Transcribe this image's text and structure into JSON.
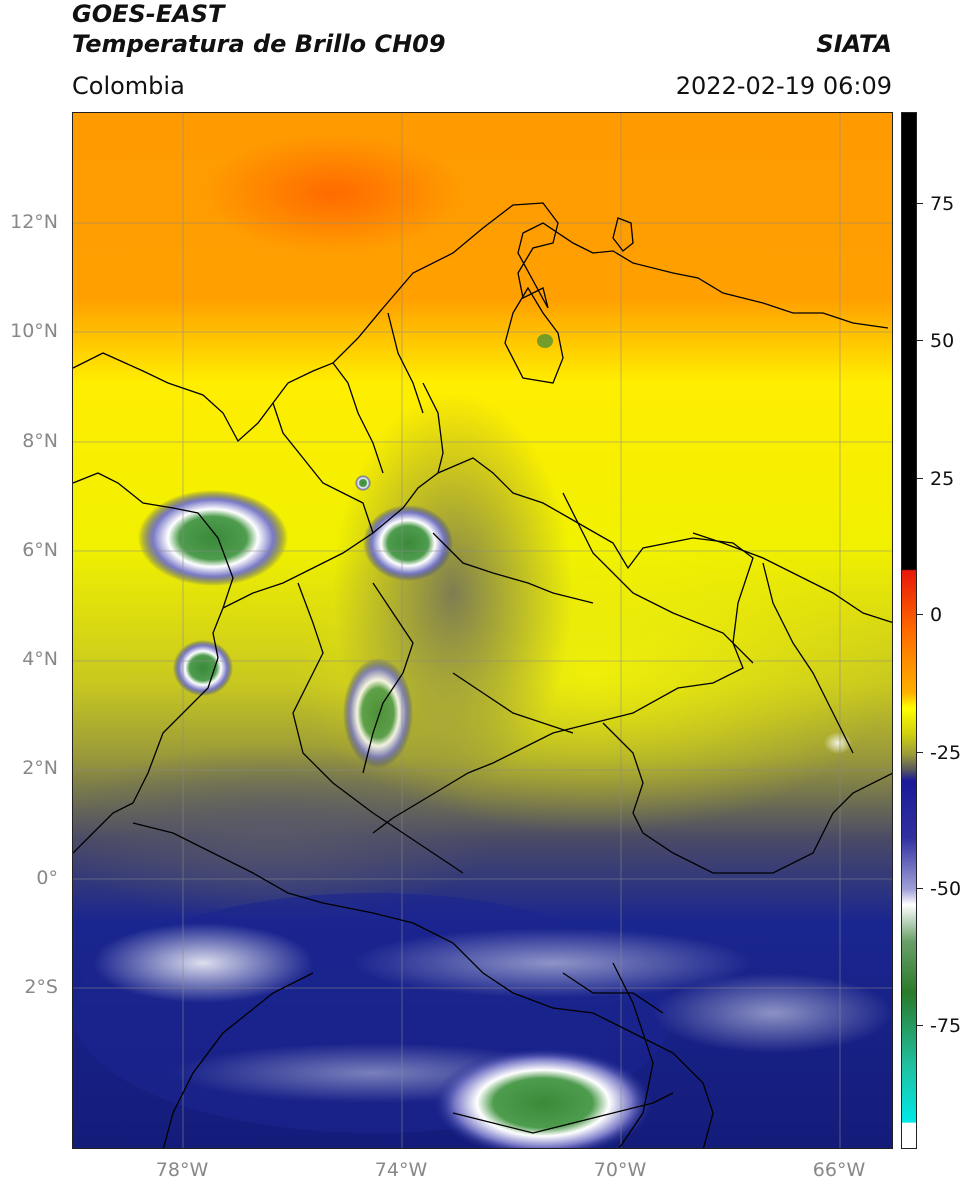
{
  "header": {
    "satellite": "GOES-EAST",
    "product": "Temperatura de Brillo CH09",
    "organization": "SIATA",
    "region": "Colombia",
    "datetime": "2022-02-19 06:09"
  },
  "map": {
    "lat_labels": [
      "12°N",
      "10°N",
      "8°N",
      "6°N",
      "4°N",
      "2°N",
      "0°",
      "2°S"
    ],
    "lon_labels": [
      "78°W",
      "74°W",
      "70°W",
      "66°W"
    ]
  },
  "colorbar": {
    "labels": [
      "75",
      "50",
      "25",
      "0",
      "-25",
      "-50",
      "-75"
    ],
    "colors": {
      "black": "#000000",
      "red": "#e8160a",
      "orange": "#ff8c00",
      "yellow": "#ffff00",
      "olive": "#9a9a3a",
      "gray": "#555560",
      "navy": "#101a80",
      "white": "#ffffff",
      "green": "#3a8a3a",
      "teal": "#20c0a0",
      "cyan": "#00e0e0"
    }
  }
}
